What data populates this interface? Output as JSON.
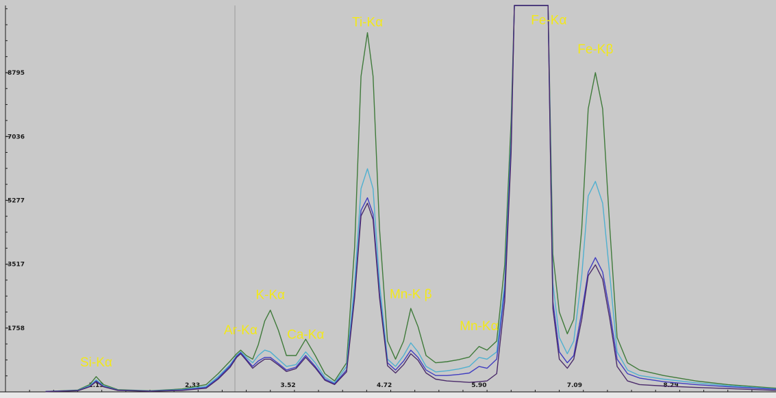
{
  "chart_data": {
    "type": "line",
    "title": "",
    "xlabel": "",
    "ylabel": "",
    "xlim": [
      0.0,
      9.6
    ],
    "ylim": [
      0,
      10650
    ],
    "xticks": [
      "1.13",
      "2.33",
      "3.52",
      "4.72",
      "5.90",
      "7.09",
      "8.29"
    ],
    "yticks": [
      "1758",
      "3517",
      "5277",
      "7036",
      "8795"
    ],
    "grid": false,
    "background": "#c9c9c9",
    "peak_labels": [
      {
        "text": "Si-Kα",
        "x": 1.13,
        "y": 700
      },
      {
        "text": "Ar-Kα",
        "x": 2.93,
        "y": 1590
      },
      {
        "text": "K-Kα",
        "x": 3.3,
        "y": 2560
      },
      {
        "text": "Ca-Kα",
        "x": 3.74,
        "y": 1460
      },
      {
        "text": "Ti-Kα",
        "x": 4.51,
        "y": 10070
      },
      {
        "text": "Mn-K β",
        "x": 5.05,
        "y": 2580
      },
      {
        "text": "Mn-Kα",
        "x": 5.9,
        "y": 1700
      },
      {
        "text": "Fe-Kα",
        "x": 6.77,
        "y": 10130
      },
      {
        "text": "Fe-Kβ",
        "x": 7.35,
        "y": 9330
      }
    ],
    "series": [
      {
        "color": "#3f7a3a",
        "x": [
          0.5,
          0.9,
          1.05,
          1.13,
          1.22,
          1.4,
          1.8,
          2.2,
          2.5,
          2.65,
          2.8,
          2.88,
          2.93,
          3.0,
          3.08,
          3.15,
          3.23,
          3.3,
          3.4,
          3.5,
          3.62,
          3.74,
          3.86,
          3.98,
          4.1,
          4.25,
          4.35,
          4.43,
          4.51,
          4.58,
          4.66,
          4.76,
          4.86,
          4.96,
          5.05,
          5.14,
          5.24,
          5.36,
          5.5,
          5.65,
          5.78,
          5.9,
          6.0,
          6.12,
          6.22,
          6.3,
          6.34,
          6.36,
          6.74,
          6.76,
          6.82,
          6.9,
          7.0,
          7.08,
          7.18,
          7.26,
          7.35,
          7.44,
          7.53,
          7.62,
          7.75,
          7.9,
          8.2,
          8.6,
          9.0,
          9.6
        ],
        "y": [
          10,
          50,
          200,
          420,
          200,
          60,
          30,
          80,
          200,
          500,
          850,
          1050,
          1150,
          1000,
          900,
          1300,
          1950,
          2250,
          1700,
          1000,
          1000,
          1450,
          1000,
          500,
          300,
          800,
          4000,
          8700,
          9900,
          8700,
          4500,
          1400,
          900,
          1400,
          2300,
          1800,
          1000,
          800,
          830,
          890,
          960,
          1250,
          1150,
          1400,
          3500,
          7500,
          10650,
          10650,
          10650,
          10650,
          3800,
          2200,
          1600,
          2000,
          4500,
          7800,
          8800,
          7800,
          4500,
          1500,
          800,
          600,
          450,
          300,
          200,
          100
        ]
      },
      {
        "color": "#4fb0d0",
        "x": [
          0.5,
          0.9,
          1.05,
          1.13,
          1.22,
          1.4,
          1.8,
          2.2,
          2.5,
          2.65,
          2.8,
          2.88,
          2.93,
          3.0,
          3.08,
          3.15,
          3.23,
          3.3,
          3.4,
          3.5,
          3.62,
          3.74,
          3.86,
          3.98,
          4.1,
          4.25,
          4.35,
          4.43,
          4.51,
          4.58,
          4.66,
          4.76,
          4.86,
          4.96,
          5.05,
          5.14,
          5.24,
          5.36,
          5.5,
          5.65,
          5.78,
          5.9,
          6.0,
          6.12,
          6.22,
          6.3,
          6.34,
          6.36,
          6.74,
          6.76,
          6.82,
          6.9,
          7.0,
          7.08,
          7.18,
          7.26,
          7.35,
          7.44,
          7.53,
          7.62,
          7.75,
          7.9,
          8.2,
          8.6,
          9.0,
          9.6
        ],
        "y": [
          10,
          40,
          170,
          330,
          170,
          50,
          25,
          60,
          150,
          420,
          750,
          1000,
          1100,
          950,
          800,
          1000,
          1150,
          1100,
          900,
          700,
          750,
          1100,
          800,
          400,
          250,
          700,
          3000,
          5600,
          6150,
          5600,
          3000,
          900,
          700,
          1000,
          1350,
          1100,
          700,
          550,
          580,
          630,
          700,
          950,
          900,
          1100,
          3000,
          7000,
          10650,
          10650,
          10650,
          10650,
          3000,
          1500,
          1050,
          1400,
          3200,
          5400,
          5800,
          5200,
          3200,
          1100,
          600,
          450,
          350,
          250,
          170,
          80
        ]
      },
      {
        "color": "#3f3cc0",
        "x": [
          0.5,
          0.9,
          1.05,
          1.13,
          1.22,
          1.4,
          1.8,
          2.2,
          2.5,
          2.65,
          2.8,
          2.88,
          2.93,
          3.0,
          3.08,
          3.15,
          3.23,
          3.3,
          3.4,
          3.5,
          3.62,
          3.74,
          3.86,
          3.98,
          4.1,
          4.25,
          4.35,
          4.43,
          4.51,
          4.58,
          4.66,
          4.76,
          4.86,
          4.96,
          5.05,
          5.14,
          5.24,
          5.36,
          5.5,
          5.65,
          5.78,
          5.9,
          6.0,
          6.12,
          6.22,
          6.3,
          6.34,
          6.36,
          6.74,
          6.76,
          6.82,
          6.9,
          7.0,
          7.08,
          7.18,
          7.26,
          7.35,
          7.44,
          7.53,
          7.62,
          7.75,
          7.9,
          8.2,
          8.6,
          9.0,
          9.6
        ],
        "y": [
          10,
          35,
          150,
          300,
          150,
          45,
          20,
          50,
          120,
          380,
          720,
          980,
          1080,
          900,
          700,
          850,
          950,
          950,
          780,
          600,
          680,
          1000,
          700,
          350,
          220,
          600,
          2700,
          5000,
          5350,
          4900,
          2700,
          800,
          600,
          850,
          1150,
          950,
          600,
          450,
          450,
          480,
          520,
          700,
          650,
          900,
          2800,
          6800,
          10650,
          10650,
          10650,
          10650,
          2500,
          1100,
          800,
          1000,
          2200,
          3300,
          3700,
          3300,
          2200,
          900,
          500,
          380,
          280,
          200,
          140,
          70
        ]
      },
      {
        "color": "#4a2a6a",
        "x": [
          0.5,
          0.9,
          1.05,
          1.13,
          1.22,
          1.4,
          1.8,
          2.2,
          2.5,
          2.65,
          2.8,
          2.88,
          2.93,
          3.0,
          3.08,
          3.15,
          3.23,
          3.3,
          3.4,
          3.5,
          3.62,
          3.74,
          3.86,
          3.98,
          4.1,
          4.25,
          4.35,
          4.43,
          4.51,
          4.58,
          4.66,
          4.76,
          4.86,
          4.96,
          5.05,
          5.14,
          5.24,
          5.36,
          5.5,
          5.65,
          5.78,
          5.9,
          6.0,
          6.12,
          6.22,
          6.3,
          6.34,
          6.36,
          6.74,
          6.76,
          6.82,
          6.9,
          7.0,
          7.08,
          7.18,
          7.26,
          7.35,
          7.44,
          7.53,
          7.62,
          7.75,
          7.9,
          8.2,
          8.6,
          9.0,
          9.6
        ],
        "y": [
          5,
          30,
          140,
          280,
          140,
          40,
          15,
          40,
          100,
          350,
          680,
          950,
          1050,
          870,
          650,
          780,
          900,
          900,
          740,
          560,
          640,
          950,
          660,
          320,
          200,
          550,
          2600,
          4850,
          5200,
          4750,
          2600,
          720,
          520,
          750,
          1050,
          870,
          520,
          350,
          300,
          280,
          260,
          280,
          300,
          500,
          2500,
          6600,
          10650,
          10650,
          10650,
          10650,
          2300,
          900,
          650,
          900,
          2000,
          3200,
          3500,
          3100,
          2000,
          700,
          300,
          200,
          160,
          120,
          90,
          40
        ]
      }
    ]
  }
}
